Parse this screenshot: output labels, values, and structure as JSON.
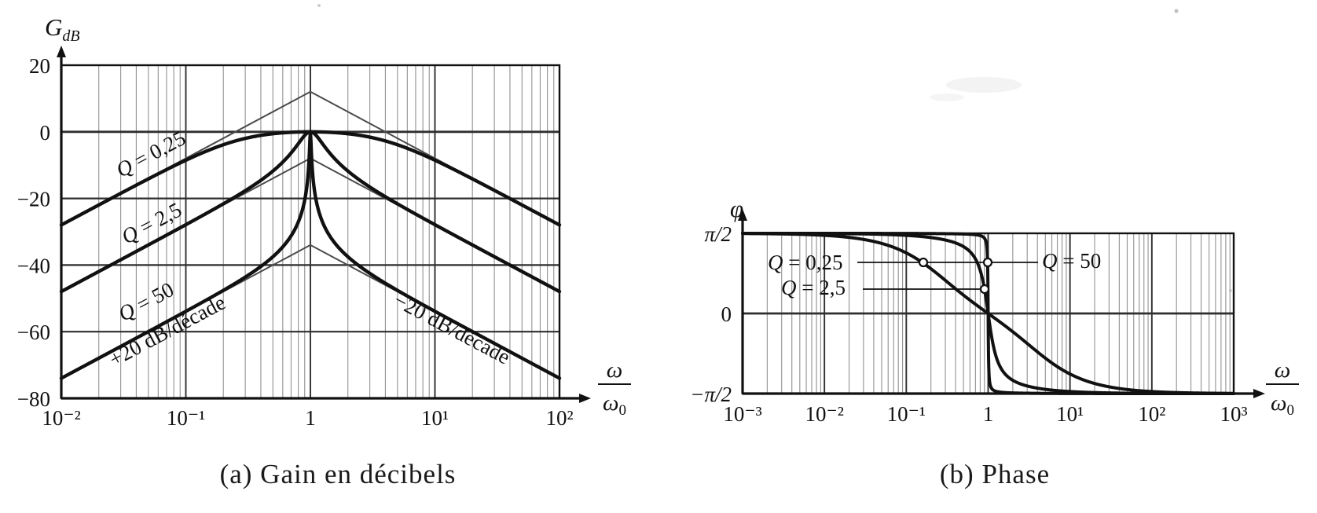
{
  "figure": {
    "caption_a": "(a) Gain en décibels",
    "caption_b": "(b) Phase"
  },
  "colors": {
    "ink": "#111111",
    "grid_minor": "#969696",
    "grid_major": "#2e2e2e",
    "asymptote": "#4b4b4b",
    "paper": "#ffffff"
  },
  "chart_data": [
    {
      "id": "gain",
      "type": "line",
      "caption": "(a) Gain en décibels",
      "x_axis": {
        "scale": "log",
        "min_exp": -2,
        "max_exp": 2,
        "ticks": [
          -2,
          -1,
          0,
          1,
          2
        ],
        "tick_labels": [
          "10⁻²",
          "10⁻¹",
          "1",
          "10¹",
          "10²"
        ],
        "label_numerator": "ω",
        "label_denominator": "ω",
        "label_denominator_sub": "0"
      },
      "y_axis": {
        "label_main": "G",
        "label_sub": "dB",
        "min": -80,
        "max": 20,
        "ticks": [
          20,
          0,
          -20,
          -40,
          -60,
          -80
        ],
        "tick_labels": [
          "20",
          "0",
          "−20",
          "−40",
          "−60",
          "−80"
        ]
      },
      "model": "G_dB = −10·log10(1 + Q²·(x − 1/x)²),  x = ω/ω₀",
      "series": [
        {
          "name": "Q = 0,25",
          "Q": 0.25,
          "points_x_dB": [
            [
              0.01,
              -28
            ],
            [
              0.1,
              -8.5
            ],
            [
              0.5,
              -0.6
            ],
            [
              1,
              0
            ],
            [
              2,
              -0.6
            ],
            [
              10,
              -8.5
            ],
            [
              100,
              -28
            ]
          ]
        },
        {
          "name": "Q = 2,5",
          "Q": 2.5,
          "points_x_dB": [
            [
              0.01,
              -48
            ],
            [
              0.1,
              -27.9
            ],
            [
              0.5,
              -11.8
            ],
            [
              1,
              0
            ],
            [
              2,
              -11.8
            ],
            [
              10,
              -27.9
            ],
            [
              100,
              -48
            ]
          ]
        },
        {
          "name": "Q = 50",
          "Q": 50,
          "points_x_dB": [
            [
              0.01,
              -74
            ],
            [
              0.1,
              -53.9
            ],
            [
              0.5,
              -37.5
            ],
            [
              0.9,
              -20.5
            ],
            [
              1,
              0
            ],
            [
              1.1,
              -19.6
            ],
            [
              2,
              -37.5
            ],
            [
              10,
              -53.9
            ],
            [
              100,
              -74
            ]
          ]
        }
      ],
      "asymptotes": {
        "apex_dB_at_x1": [
          12,
          -8,
          -34
        ],
        "slope_label_left": "+20 dB/décade",
        "slope_label_right": "−20 dB/décade"
      }
    },
    {
      "id": "phase",
      "type": "line",
      "caption": "(b) Phase",
      "x_axis": {
        "scale": "log",
        "min_exp": -3,
        "max_exp": 3,
        "ticks": [
          -3,
          -2,
          -1,
          0,
          1,
          2,
          3
        ],
        "tick_labels": [
          "10⁻³",
          "10⁻²",
          "10⁻¹",
          "1",
          "10¹",
          "10²",
          "10³"
        ],
        "label_numerator": "ω",
        "label_denominator": "ω",
        "label_denominator_sub": "0"
      },
      "y_axis": {
        "label_main": "φ",
        "min_label": "−π/2",
        "max_label": "π/2",
        "ticks": [
          1,
          0,
          -1
        ],
        "tick_labels": [
          "π/2",
          "0",
          "−π/2"
        ],
        "units": "multiples of π/2"
      },
      "model": "φ = arctan(Q·(1/x − x)),  x = ω/ω₀",
      "series": [
        {
          "name": "Q = 0,25",
          "Q": 0.25,
          "points_x_phi_over_halfpi": [
            [
              0.001,
              1.0
            ],
            [
              0.01,
              0.97
            ],
            [
              0.1,
              0.76
            ],
            [
              0.5,
              0.23
            ],
            [
              1,
              0
            ],
            [
              2,
              -0.23
            ],
            [
              10,
              -0.76
            ],
            [
              100,
              -0.97
            ],
            [
              1000,
              -1.0
            ]
          ]
        },
        {
          "name": "Q = 2,5",
          "Q": 2.5,
          "points_x_phi_over_halfpi": [
            [
              0.001,
              1.0
            ],
            [
              0.1,
              0.97
            ],
            [
              0.5,
              0.83
            ],
            [
              0.9,
              0.31
            ],
            [
              1,
              0
            ],
            [
              1.1,
              -0.31
            ],
            [
              2,
              -0.83
            ],
            [
              10,
              -0.97
            ],
            [
              1000,
              -1.0
            ]
          ]
        },
        {
          "name": "Q = 50",
          "Q": 50,
          "points_x_phi_over_halfpi": [
            [
              0.001,
              1.0
            ],
            [
              0.9,
              0.94
            ],
            [
              0.99,
              0.5
            ],
            [
              1,
              0
            ],
            [
              1.01,
              -0.5
            ],
            [
              1.1,
              -0.94
            ],
            [
              1000,
              -1.0
            ]
          ]
        }
      ],
      "callouts": [
        {
          "label": "Q = 0,25",
          "marker_x": 0.16,
          "marker_phi_over_halfpi": 0.64
        },
        {
          "label": "Q = 2,5",
          "marker_x": 0.9,
          "marker_phi_over_halfpi": 0.3
        },
        {
          "label": "Q = 50",
          "marker_x": 0.985,
          "marker_phi_over_halfpi": 0.64
        }
      ]
    }
  ]
}
